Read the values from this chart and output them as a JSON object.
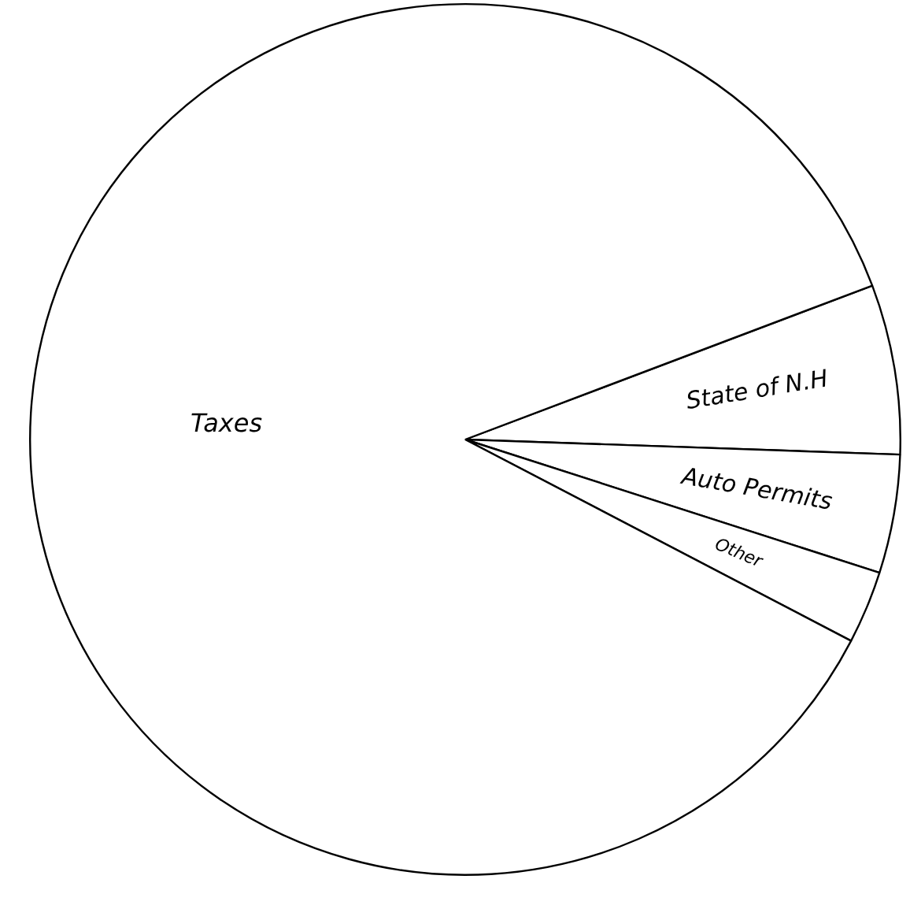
{
  "chart_data": {
    "type": "pie",
    "categories": [
      "State of N.H",
      "Auto Permits",
      "Other",
      "Taxes"
    ],
    "values": [
      6.3,
      4.4,
      2.7,
      86.6
    ],
    "colors": [
      "#ffffff",
      "#ffffff",
      "#ffffff",
      "#ffffff"
    ],
    "legend": false
  }
}
